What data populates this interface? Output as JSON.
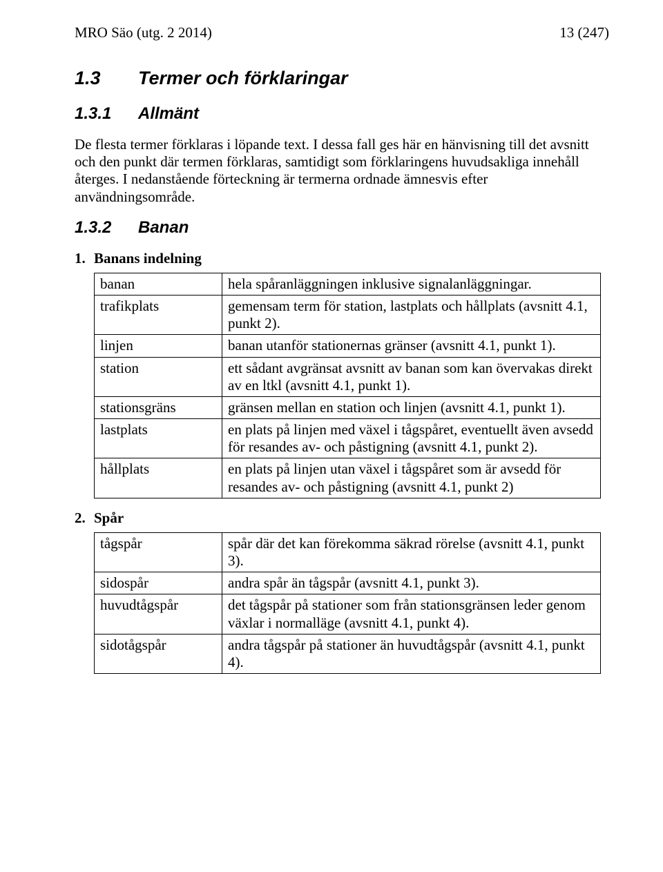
{
  "header": {
    "left": "MRO Säo (utg. 2 2014)",
    "right": "13 (247)"
  },
  "sections": {
    "s13": {
      "num": "1.3",
      "title": "Termer och förklaringar"
    },
    "s131": {
      "num": "1.3.1",
      "title": "Allmänt",
      "para": "De flesta termer förklaras i löpande text. I dessa fall ges här en hänvisning till det avsnitt och den punkt där termen förklaras, samtidigt som förklaringens huvudsakliga innehåll återges. I nedanstående förteckning är termerna ordnade ämnesvis efter användningsområde."
    },
    "s132": {
      "num": "1.3.2",
      "title": "Banan"
    }
  },
  "lists": {
    "banans": {
      "num": "1.",
      "title": "Banans indelning",
      "rows": [
        {
          "term": "banan",
          "def": "hela spåranläggningen inklusive signalanläggningar."
        },
        {
          "term": "trafikplats",
          "def": "gemensam term för station, lastplats och hållplats (avsnitt 4.1, punkt 2)."
        },
        {
          "term": "linjen",
          "def": "banan utanför stationernas gränser (avsnitt 4.1, punkt 1)."
        },
        {
          "term": "station",
          "def": "ett sådant avgränsat avsnitt av banan som kan övervakas direkt av en ltkl (avsnitt 4.1, punkt 1)."
        },
        {
          "term": "stationsgräns",
          "def": "gränsen mellan en station och linjen (avsnitt 4.1, punkt 1)."
        },
        {
          "term": "lastplats",
          "def": "en plats på linjen med växel i tågspåret, eventuellt även avsedd för resandes av- och påstigning (avsnitt 4.1, punkt 2)."
        },
        {
          "term": "hållplats",
          "def": "en plats på linjen utan växel i tågspåret som är avsedd för resandes av- och påstigning (avsnitt 4.1, punkt 2)"
        }
      ]
    },
    "spar": {
      "num": "2.",
      "title": "Spår",
      "rows": [
        {
          "term": "tågspår",
          "def": "spår där det kan förekomma säkrad rörelse (avsnitt 4.1, punkt 3)."
        },
        {
          "term": "sidospår",
          "def": "andra spår än tågspår (avsnitt 4.1, punkt 3)."
        },
        {
          "term": "huvudtågspår",
          "def": "det tågspår på stationer som från stationsgränsen leder genom växlar i normalläge (avsnitt 4.1, punkt 4)."
        },
        {
          "term": "sidotågspår",
          "def": "andra tågspår på stationer än huvudtågspår (avsnitt 4.1, punkt 4)."
        }
      ]
    }
  }
}
